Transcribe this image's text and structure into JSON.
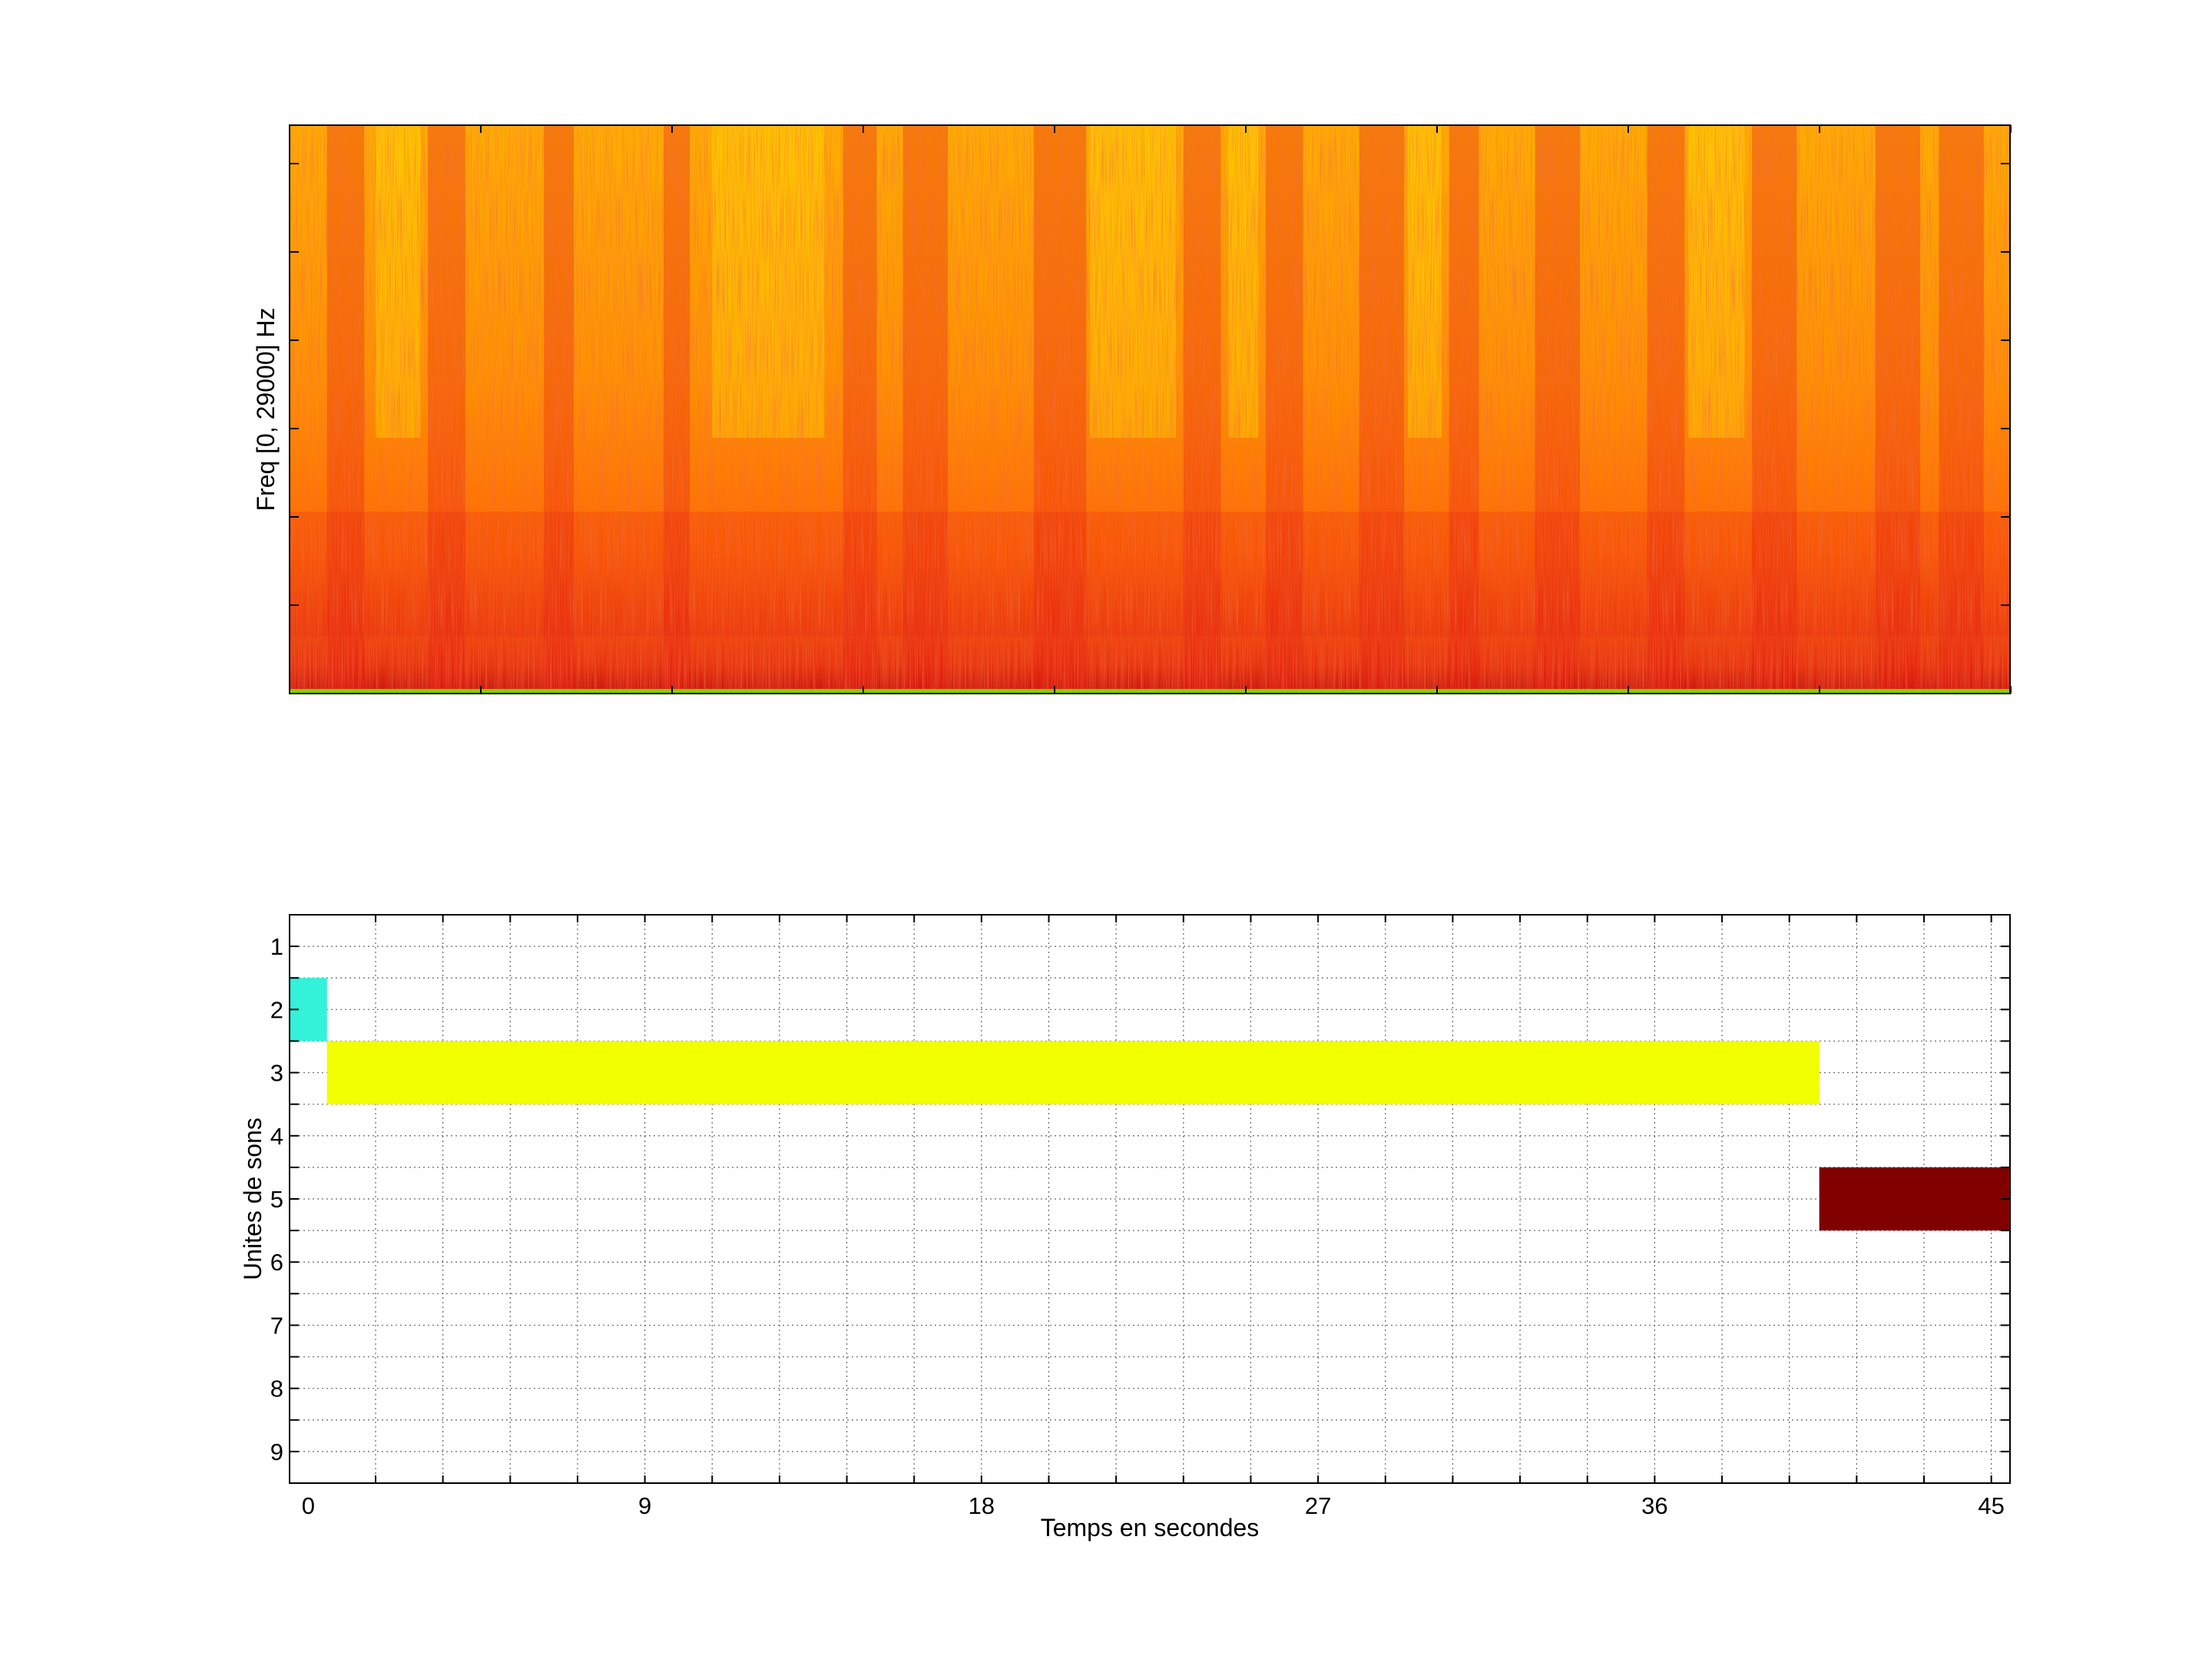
{
  "chart_data": [
    {
      "type": "heatmap",
      "title": "",
      "xlabel": "",
      "ylabel": "Freq [0, 29000] Hz",
      "xlim": [
        -0.5,
        45.5
      ],
      "ylim": [
        0,
        29000
      ],
      "colormap": [
        "#fff200",
        "#ffb000",
        "#ff6a00",
        "#e41a10",
        "#b00018"
      ],
      "ticks": {
        "x_count": 10,
        "y_count": 7,
        "labels_visible": false
      },
      "grid": false
    },
    {
      "type": "bar",
      "title": "",
      "xlabel": "Temps en secondes",
      "ylabel": "Unites de sons",
      "xlim": [
        -0.5,
        45.5
      ],
      "ylim": [
        0.5,
        9.5
      ],
      "y_reversed": true,
      "xticks": [
        0,
        9,
        18,
        27,
        36,
        45
      ],
      "xtick_labels": [
        "0",
        "9",
        "18",
        "27",
        "36",
        "45"
      ],
      "yticks": [
        1,
        2,
        3,
        4,
        5,
        6,
        7,
        8,
        9
      ],
      "ytick_labels": [
        "1",
        "2",
        "3",
        "4",
        "5",
        "6",
        "7",
        "8",
        "9"
      ],
      "grid": true,
      "segments": [
        {
          "unit": 2,
          "start": -0.5,
          "end": 0.5,
          "color": "#33f2d9"
        },
        {
          "unit": 3,
          "start": 0.5,
          "end": 40.4,
          "color": "#f2ff00"
        },
        {
          "unit": 5,
          "start": 40.4,
          "end": 45.5,
          "color": "#800000"
        }
      ]
    }
  ]
}
